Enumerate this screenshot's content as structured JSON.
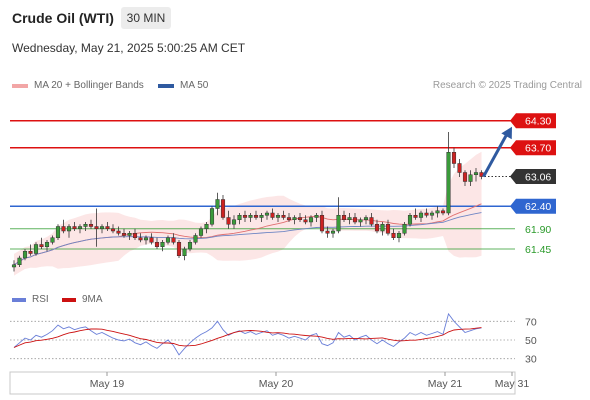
{
  "header": {
    "title": "Crude Oil (WTI)",
    "interval": "30 MIN",
    "datetime": "Wednesday, May 21, 2025 5:00:25 AM CET"
  },
  "legend": {
    "ma20_label": "MA 20 + Bollinger Bands",
    "ma50_label": "MA 50",
    "ma20_color": "#e07070",
    "ma50_color": "#2f5aa0",
    "credit": "Research © 2025 Trading Central"
  },
  "rsi_legend": {
    "rsi_label": "RSI",
    "ma9_label": "9MA",
    "rsi_color": "#6a7fd8",
    "ma9_color": "#cc1111"
  },
  "chart_data": [
    {
      "type": "candlestick",
      "title": "Crude Oil (WTI)",
      "ylim": [
        60.85,
        64.85
      ],
      "x_ticks": [
        "May 19",
        "May 20",
        "May 21",
        "May 31"
      ],
      "current_price": 63.06,
      "levels": [
        {
          "value": 64.3,
          "label": "64.30",
          "kind": "resistance",
          "color": "#dd1111"
        },
        {
          "value": 63.7,
          "label": "63.70",
          "kind": "resistance",
          "color": "#dd1111"
        },
        {
          "value": 62.4,
          "label": "62.40",
          "kind": "pivot",
          "color": "#2f66d0"
        },
        {
          "value": 61.9,
          "label": "61.90",
          "kind": "support",
          "color": "#2a9a2a"
        },
        {
          "value": 61.45,
          "label": "61.45",
          "kind": "support",
          "color": "#2a9a2a"
        }
      ],
      "arrow": {
        "from": 63.06,
        "to": 64.3,
        "direction": "up",
        "color": "#2f5aa0"
      },
      "series": [
        {
          "name": "MA 20 + Bollinger Bands",
          "color": "#e07070"
        },
        {
          "name": "MA 50",
          "color": "#2f5aa0"
        }
      ],
      "ohlc": [
        [
          61.05,
          61.2,
          60.95,
          61.1
        ],
        [
          61.1,
          61.3,
          61.05,
          61.25
        ],
        [
          61.25,
          61.45,
          61.2,
          61.4
        ],
        [
          61.4,
          61.55,
          61.3,
          61.35
        ],
        [
          61.35,
          61.6,
          61.3,
          61.55
        ],
        [
          61.55,
          61.7,
          61.45,
          61.5
        ],
        [
          61.5,
          61.65,
          61.4,
          61.6
        ],
        [
          61.6,
          61.75,
          61.55,
          61.7
        ],
        [
          61.7,
          62.0,
          61.65,
          61.95
        ],
        [
          61.95,
          62.1,
          61.8,
          61.85
        ],
        [
          61.85,
          62.0,
          61.7,
          61.95
        ],
        [
          61.95,
          62.05,
          61.85,
          61.9
        ],
        [
          61.9,
          62.0,
          61.8,
          61.95
        ],
        [
          61.95,
          62.05,
          61.85,
          62.0
        ],
        [
          62.0,
          62.1,
          61.9,
          61.95
        ],
        [
          61.95,
          62.35,
          61.5,
          61.9
        ],
        [
          61.9,
          62.0,
          61.8,
          61.95
        ],
        [
          61.95,
          62.05,
          61.85,
          61.9
        ],
        [
          61.9,
          62.0,
          61.8,
          61.85
        ],
        [
          61.85,
          61.95,
          61.75,
          61.8
        ],
        [
          61.8,
          61.9,
          61.7,
          61.75
        ],
        [
          61.75,
          61.85,
          61.65,
          61.8
        ],
        [
          61.8,
          61.9,
          61.65,
          61.7
        ],
        [
          61.7,
          61.8,
          61.6,
          61.65
        ],
        [
          61.65,
          61.75,
          61.55,
          61.7
        ],
        [
          61.7,
          61.8,
          61.55,
          61.6
        ],
        [
          61.6,
          61.7,
          61.45,
          61.5
        ],
        [
          61.5,
          61.65,
          61.4,
          61.6
        ],
        [
          61.6,
          61.75,
          61.55,
          61.7
        ],
        [
          61.7,
          61.8,
          61.55,
          61.6
        ],
        [
          61.6,
          61.65,
          61.25,
          61.3
        ],
        [
          61.3,
          61.5,
          61.2,
          61.45
        ],
        [
          61.45,
          61.65,
          61.4,
          61.6
        ],
        [
          61.6,
          61.8,
          61.55,
          61.75
        ],
        [
          61.75,
          61.95,
          61.7,
          61.9
        ],
        [
          61.9,
          62.05,
          61.8,
          62.0
        ],
        [
          62.0,
          62.4,
          61.95,
          62.35
        ],
        [
          62.35,
          62.7,
          62.2,
          62.55
        ],
        [
          62.55,
          62.65,
          62.1,
          62.15
        ],
        [
          62.15,
          62.3,
          61.9,
          62.0
        ],
        [
          62.0,
          62.2,
          61.9,
          62.1
        ],
        [
          62.1,
          62.25,
          62.0,
          62.2
        ],
        [
          62.2,
          62.3,
          62.05,
          62.15
        ],
        [
          62.15,
          62.25,
          62.05,
          62.2
        ],
        [
          62.2,
          62.3,
          62.1,
          62.15
        ],
        [
          62.15,
          62.25,
          62.05,
          62.2
        ],
        [
          62.2,
          62.3,
          62.1,
          62.25
        ],
        [
          62.25,
          62.35,
          62.1,
          62.15
        ],
        [
          62.15,
          62.25,
          62.05,
          62.2
        ],
        [
          62.2,
          62.3,
          62.1,
          62.15
        ],
        [
          62.15,
          62.25,
          62.05,
          62.1
        ],
        [
          62.1,
          62.2,
          62.0,
          62.15
        ],
        [
          62.15,
          62.25,
          62.05,
          62.1
        ],
        [
          62.1,
          62.2,
          62.0,
          62.05
        ],
        [
          62.05,
          62.2,
          61.95,
          62.15
        ],
        [
          62.15,
          62.25,
          62.05,
          62.2
        ],
        [
          62.2,
          62.3,
          61.8,
          61.85
        ],
        [
          61.85,
          61.95,
          61.7,
          61.8
        ],
        [
          61.8,
          61.9,
          61.7,
          61.85
        ],
        [
          61.85,
          62.6,
          61.8,
          62.2
        ],
        [
          62.2,
          62.3,
          62.05,
          62.1
        ],
        [
          62.1,
          62.25,
          62.0,
          62.15
        ],
        [
          62.15,
          62.25,
          62.0,
          62.05
        ],
        [
          62.05,
          62.15,
          61.95,
          62.1
        ],
        [
          62.1,
          62.2,
          62.0,
          62.15
        ],
        [
          62.15,
          62.25,
          61.95,
          62.0
        ],
        [
          62.0,
          62.1,
          61.8,
          61.85
        ],
        [
          61.85,
          62.05,
          61.75,
          62.0
        ],
        [
          62.0,
          62.1,
          61.75,
          61.8
        ],
        [
          61.8,
          61.9,
          61.65,
          61.7
        ],
        [
          61.7,
          61.85,
          61.6,
          61.8
        ],
        [
          61.8,
          62.05,
          61.75,
          62.0
        ],
        [
          62.0,
          62.25,
          61.95,
          62.2
        ],
        [
          62.2,
          62.35,
          62.1,
          62.15
        ],
        [
          62.15,
          62.3,
          62.05,
          62.25
        ],
        [
          62.25,
          62.35,
          62.15,
          62.2
        ],
        [
          62.2,
          62.3,
          62.1,
          62.25
        ],
        [
          62.25,
          62.4,
          62.15,
          62.3
        ],
        [
          62.3,
          62.35,
          62.2,
          62.25
        ],
        [
          62.25,
          64.05,
          62.2,
          63.6
        ],
        [
          63.6,
          63.7,
          63.25,
          63.35
        ],
        [
          63.35,
          63.45,
          63.05,
          63.15
        ],
        [
          63.15,
          63.2,
          62.85,
          62.95
        ],
        [
          62.95,
          63.2,
          62.85,
          63.1
        ],
        [
          63.1,
          63.25,
          62.95,
          63.15
        ],
        [
          63.15,
          63.2,
          63.0,
          63.06
        ]
      ]
    },
    {
      "type": "line",
      "title": "RSI",
      "ylim": [
        20,
        80
      ],
      "y_ticks": [
        70,
        50,
        30
      ],
      "series": [
        {
          "name": "RSI",
          "color": "#6a7fd8"
        },
        {
          "name": "9MA",
          "color": "#cc1111"
        }
      ],
      "rsi": [
        42,
        47,
        52,
        50,
        55,
        53,
        56,
        60,
        66,
        62,
        64,
        61,
        63,
        64,
        60,
        56,
        58,
        55,
        52,
        50,
        49,
        51,
        47,
        45,
        48,
        44,
        41,
        46,
        50,
        44,
        34,
        41,
        47,
        52,
        56,
        59,
        63,
        70,
        61,
        55,
        58,
        60,
        57,
        59,
        56,
        58,
        60,
        55,
        57,
        55,
        52,
        54,
        52,
        50,
        55,
        57,
        46,
        44,
        47,
        58,
        53,
        55,
        50,
        53,
        55,
        50,
        46,
        50,
        46,
        43,
        48,
        52,
        58,
        55,
        58,
        55,
        57,
        59,
        56,
        78,
        70,
        64,
        58,
        60,
        62,
        63
      ]
    }
  ]
}
